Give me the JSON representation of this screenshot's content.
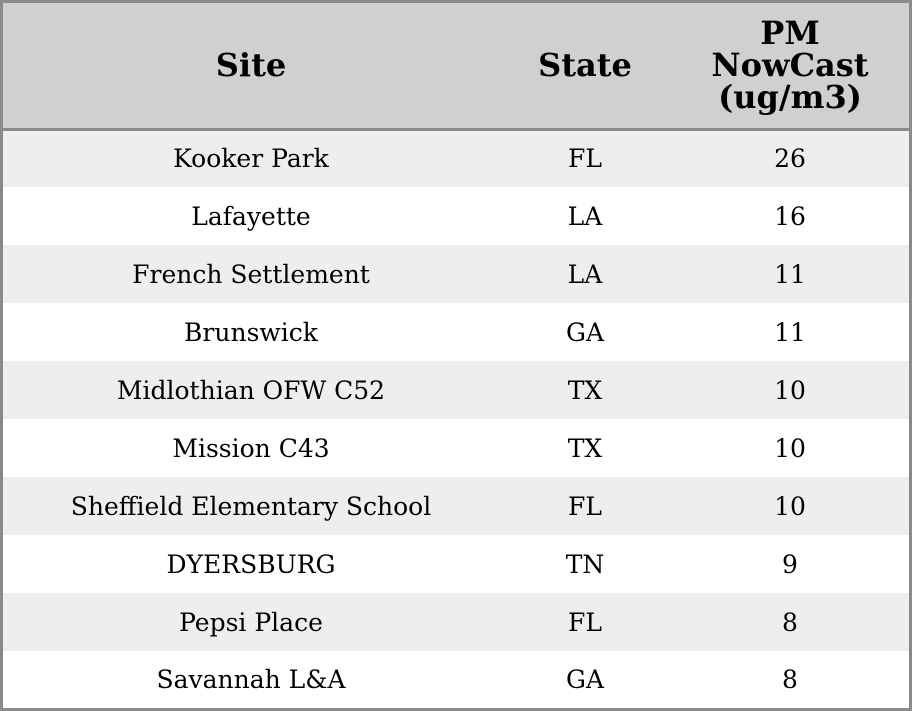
{
  "table": {
    "headers": {
      "site": "Site",
      "state": "State",
      "pm_lines": [
        "PM",
        "NowCast",
        "(ug/m3)"
      ]
    },
    "rows": [
      {
        "site": "Kooker Park",
        "state": "FL",
        "pm": "26"
      },
      {
        "site": "Lafayette",
        "state": "LA",
        "pm": "16"
      },
      {
        "site": "French Settlement",
        "state": "LA",
        "pm": "11"
      },
      {
        "site": "Brunswick",
        "state": "GA",
        "pm": "11"
      },
      {
        "site": "Midlothian OFW C52",
        "state": "TX",
        "pm": "10"
      },
      {
        "site": "Mission C43",
        "state": "TX",
        "pm": "10"
      },
      {
        "site": "Sheffield Elementary School",
        "state": "FL",
        "pm": "10"
      },
      {
        "site": "DYERSBURG",
        "state": "TN",
        "pm": "9"
      },
      {
        "site": "Pepsi Place",
        "state": "FL",
        "pm": "8"
      },
      {
        "site": "Savannah L&A",
        "state": "GA",
        "pm": "8"
      }
    ]
  },
  "colors": {
    "header_bg": "#d0d0d0",
    "row_odd_bg": "#eeeeee",
    "row_even_bg": "#ffffff",
    "border": "#8a8a8a"
  }
}
